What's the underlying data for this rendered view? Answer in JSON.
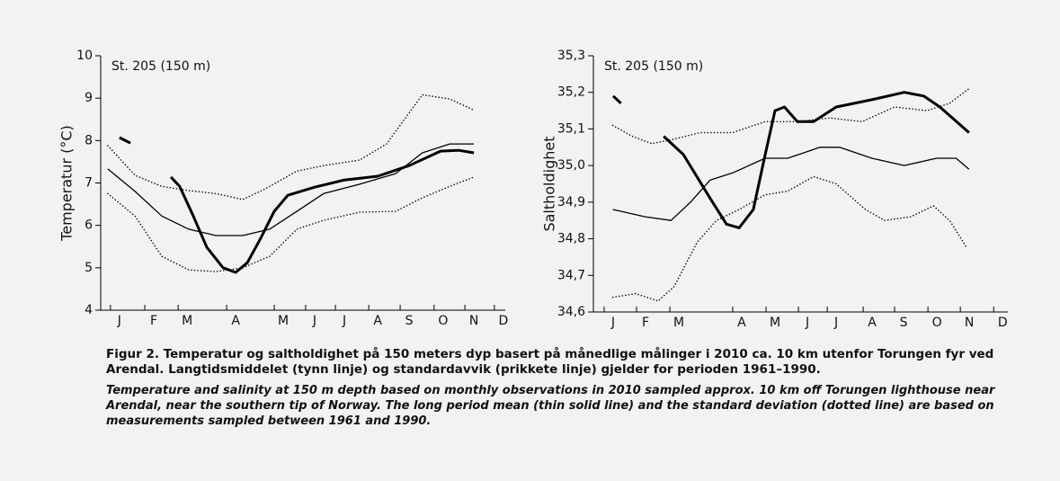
{
  "chart_data": [
    {
      "type": "line",
      "y_label": "Temperatur (°C)",
      "annotation": "St. 205 (150 m)",
      "xlim": [
        0,
        12.5
      ],
      "ylim": [
        4,
        10
      ],
      "xticks": [
        {
          "value": 0.58,
          "label": "J"
        },
        {
          "value": 1.64,
          "label": "F"
        },
        {
          "value": 2.67,
          "label": "M"
        },
        {
          "value": 4.17,
          "label": "A"
        },
        {
          "value": 5.64,
          "label": "M"
        },
        {
          "value": 6.61,
          "label": "J"
        },
        {
          "value": 7.53,
          "label": "J"
        },
        {
          "value": 8.56,
          "label": "A"
        },
        {
          "value": 9.53,
          "label": "S"
        },
        {
          "value": 10.58,
          "label": "O"
        },
        {
          "value": 11.53,
          "label": "N"
        },
        {
          "value": 12.44,
          "label": "D"
        }
      ],
      "yticks": [
        4,
        5,
        6,
        7,
        8,
        9,
        10
      ],
      "series": [
        {
          "color": "#000000",
          "line_style": "solid",
          "line_width": 3,
          "x": [
            0.58,
            0.92,
            null,
            2.17,
            2.44,
            2.86,
            3.28,
            3.78,
            4.17,
            4.53,
            4.94,
            5.36,
            5.78,
            6.61,
            7.53,
            8.56,
            9.53,
            10.5,
            11.06,
            11.53
          ],
          "values": [
            8.07,
            7.94,
            null,
            7.14,
            6.92,
            6.22,
            5.48,
            5.0,
            4.89,
            5.12,
            5.69,
            6.33,
            6.71,
            6.9,
            7.07,
            7.16,
            7.41,
            7.75,
            7.77,
            7.71
          ]
        },
        {
          "color": "#000000",
          "line_style": "solid",
          "line_width": 1.3,
          "x": [
            0.22,
            1.06,
            1.89,
            2.72,
            3.56,
            4.39,
            5.22,
            6.06,
            6.89,
            8.0,
            9.11,
            9.94,
            10.78,
            11.53
          ],
          "values": [
            7.33,
            6.8,
            6.22,
            5.91,
            5.76,
            5.76,
            5.91,
            6.33,
            6.75,
            6.97,
            7.22,
            7.71,
            7.92,
            7.92
          ]
        },
        {
          "color": "#000000",
          "line_style": "dotted",
          "line_width": 1.5,
          "x": [
            0.22,
            1.06,
            1.89,
            2.72,
            3.56,
            4.39,
            5.08,
            6.06,
            6.89,
            8.0,
            8.83,
            9.94,
            10.78,
            11.53
          ],
          "values": [
            7.88,
            7.18,
            6.92,
            6.82,
            6.75,
            6.61,
            6.86,
            7.28,
            7.41,
            7.54,
            7.92,
            9.08,
            8.98,
            8.72
          ]
        },
        {
          "color": "#000000",
          "line_style": "dotted",
          "line_width": 1.5,
          "x": [
            0.22,
            1.06,
            1.89,
            2.72,
            3.56,
            4.39,
            5.22,
            6.06,
            6.89,
            8.0,
            9.11,
            9.94,
            10.78,
            11.53
          ],
          "values": [
            6.75,
            6.22,
            5.27,
            4.95,
            4.91,
            5.0,
            5.27,
            5.91,
            6.12,
            6.31,
            6.33,
            6.65,
            6.92,
            7.14
          ]
        }
      ]
    },
    {
      "type": "line",
      "y_label": "Saltholdighet",
      "annotation": "St. 205 (150 m)",
      "xlim": [
        0,
        12.8
      ],
      "ylim": [
        34.6,
        35.3
      ],
      "xticks": [
        {
          "value": 0.61,
          "label": "J"
        },
        {
          "value": 1.61,
          "label": "F"
        },
        {
          "value": 2.64,
          "label": "M"
        },
        {
          "value": 4.58,
          "label": "A"
        },
        {
          "value": 5.61,
          "label": "M"
        },
        {
          "value": 6.61,
          "label": "J"
        },
        {
          "value": 7.5,
          "label": "J"
        },
        {
          "value": 8.61,
          "label": "A"
        },
        {
          "value": 9.58,
          "label": "S"
        },
        {
          "value": 10.61,
          "label": "O"
        },
        {
          "value": 11.61,
          "label": "N"
        },
        {
          "value": 12.64,
          "label": "D"
        }
      ],
      "yticks": [
        {
          "value": 34.6,
          "label": "34,6"
        },
        {
          "value": 34.7,
          "label": "34,7"
        },
        {
          "value": 34.8,
          "label": "34,8"
        },
        {
          "value": 34.9,
          "label": "34,9"
        },
        {
          "value": 35.0,
          "label": "35,0"
        },
        {
          "value": 35.1,
          "label": "35,1"
        },
        {
          "value": 35.2,
          "label": "35,2"
        },
        {
          "value": 35.3,
          "label": "35,3"
        }
      ],
      "series": [
        {
          "color": "#000000",
          "line_style": "solid",
          "line_width": 3,
          "x": [
            0.61,
            0.85,
            null,
            2.17,
            2.78,
            3.61,
            4.11,
            4.5,
            4.94,
            5.28,
            5.61,
            5.9,
            6.3,
            6.8,
            7.5,
            8.6,
            9.6,
            10.2,
            10.7,
            11.6
          ],
          "values": [
            35.19,
            35.17,
            null,
            35.08,
            35.03,
            34.91,
            34.84,
            34.83,
            34.88,
            35.02,
            35.15,
            35.16,
            35.12,
            35.12,
            35.16,
            35.18,
            35.2,
            35.19,
            35.16,
            35.09
          ]
        },
        {
          "color": "#000000",
          "line_style": "solid",
          "line_width": 1.3,
          "x": [
            0.6,
            1.6,
            2.4,
            3.0,
            3.6,
            4.3,
            5.3,
            6.0,
            7.0,
            7.6,
            8.6,
            9.6,
            10.6,
            11.2,
            11.6
          ],
          "values": [
            34.88,
            34.86,
            34.85,
            34.9,
            34.96,
            34.98,
            35.02,
            35.02,
            35.05,
            35.05,
            35.02,
            35.0,
            35.02,
            35.02,
            34.99
          ]
        },
        {
          "color": "#000000",
          "line_style": "dotted",
          "line_width": 1.5,
          "x": [
            0.6,
            1.2,
            1.8,
            2.4,
            3.3,
            4.3,
            5.3,
            6.3,
            7.3,
            8.3,
            9.3,
            10.3,
            11.0,
            11.6
          ],
          "values": [
            35.11,
            35.08,
            35.06,
            35.07,
            35.09,
            35.09,
            35.12,
            35.12,
            35.13,
            35.12,
            35.16,
            35.15,
            35.17,
            35.21
          ]
        },
        {
          "color": "#000000",
          "line_style": "dotted",
          "line_width": 1.5,
          "x": [
            0.6,
            1.3,
            2.0,
            2.5,
            3.2,
            3.8,
            4.5,
            5.3,
            6.0,
            6.8,
            7.5,
            8.4,
            9.0,
            9.8,
            10.5,
            11.0,
            11.5
          ],
          "values": [
            34.64,
            34.65,
            34.63,
            34.67,
            34.79,
            34.85,
            34.88,
            34.92,
            34.93,
            34.97,
            34.95,
            34.88,
            34.85,
            34.86,
            34.89,
            34.85,
            34.78
          ]
        }
      ]
    }
  ],
  "caption": {
    "norwegian": "Figur 2. Temperatur og saltholdighet på 150 meters dyp basert på månedlige målinger i 2010 ca. 10 km utenfor Torungen fyr ved Arendal. Langtidsmiddelet (tynn linje) og standardavvik (prikkete linje) gjelder for perioden 1961–1990.",
    "english": "Temperature and salinity at 150 m depth based on monthly observations in 2010 sampled approx. 10 km off Torungen lighthouse near Arendal, near the southern tip of Norway. The long period mean (thin solid line) and the standard deviation (dotted line) are based on measurements sampled between 1961 and 1990."
  }
}
